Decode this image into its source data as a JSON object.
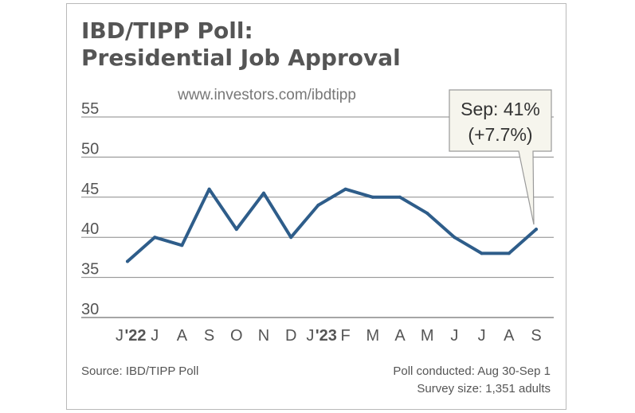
{
  "chart_data": {
    "type": "line",
    "title": "IBD/TIPP Poll:",
    "subtitle": "Presidential Job Approval",
    "watermark": "www.investors.com/ibdtipp",
    "categories": [
      "J",
      "J",
      "A",
      "S",
      "O",
      "N",
      "D",
      "J",
      "F",
      "M",
      "A",
      "M",
      "J",
      "J",
      "A",
      "S"
    ],
    "year_labels": [
      {
        "index": 0,
        "label": "'22"
      },
      {
        "index": 7,
        "label": "'23"
      }
    ],
    "series": [
      {
        "name": "Presidential Job Approval",
        "values": [
          37,
          40,
          39,
          46,
          41,
          45.5,
          40,
          44,
          46,
          45,
          45,
          43,
          40,
          38,
          38,
          41
        ]
      }
    ],
    "yticks": [
      30,
      35,
      40,
      45,
      50,
      55
    ],
    "ylim": [
      30,
      55
    ],
    "annotation": {
      "line1": "Sep: 41%",
      "line2": "(+7.7%)",
      "index": 15
    },
    "colors": {
      "line": "#2e5d8a",
      "grid": "#888888",
      "text": "#555555",
      "callout_fill": "#f6f5ed"
    }
  },
  "footer": {
    "source": "Source: IBD/TIPP Poll",
    "conducted": "Poll conducted:  Aug 30-Sep 1",
    "survey": "Survey size: 1,351 adults"
  }
}
